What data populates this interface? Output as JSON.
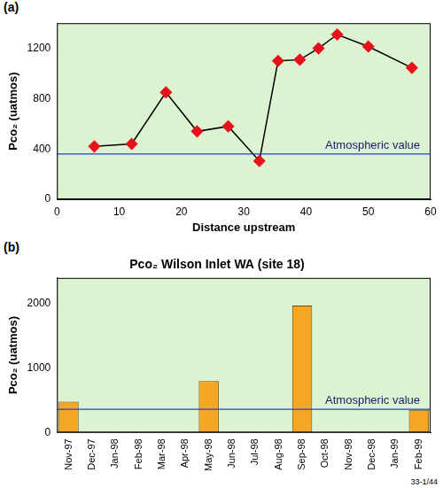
{
  "chart_data": [
    {
      "type": "line",
      "panel_label": "(a)",
      "x_label": "Distance upstream",
      "y_label": "Pco₂ (uatmos)",
      "x": [
        6,
        12,
        17.5,
        22.5,
        27.5,
        32.5,
        35.5,
        39,
        42,
        45,
        50,
        57
      ],
      "values": [
        420,
        440,
        850,
        540,
        580,
        305,
        1100,
        1110,
        1200,
        1310,
        1215,
        1045
      ],
      "color": "#e8101c",
      "marker": "diamond",
      "line_style": "solid",
      "xlim": [
        0,
        60
      ],
      "xticks": [
        0,
        10,
        20,
        30,
        40,
        50,
        60
      ],
      "ylim": [
        0,
        1400
      ],
      "yticks": [
        0,
        400,
        800,
        1200
      ],
      "grid": false,
      "annotations": [
        {
          "text": "Atmospheric value",
          "y": 360
        }
      ]
    },
    {
      "type": "bar",
      "panel_label": "(b)",
      "title": "Pco₂ Wilson Inlet WA (site 18)",
      "y_label": "Pco₂ (uatmos)",
      "categories": [
        "Nov-97",
        "Dec-97",
        "Jan-98",
        "Feb-98",
        "Mar-98",
        "Apr-98",
        "May-98",
        "Jun-98",
        "Jul-98",
        "Aug-98",
        "Sep-98",
        "Oct-98",
        "Nov-98",
        "Dec-98",
        "Jan-99",
        "Feb-99"
      ],
      "values": [
        480,
        null,
        null,
        null,
        null,
        null,
        800,
        null,
        null,
        null,
        1970,
        null,
        null,
        null,
        null,
        350
      ],
      "color": "#f5a623",
      "ylim": [
        0,
        2400
      ],
      "yticks": [
        0,
        1000,
        2000
      ],
      "grid": false,
      "annotations": [
        {
          "text": "Atmospheric value",
          "y": 360
        }
      ]
    }
  ],
  "footnote": "33-1/44"
}
